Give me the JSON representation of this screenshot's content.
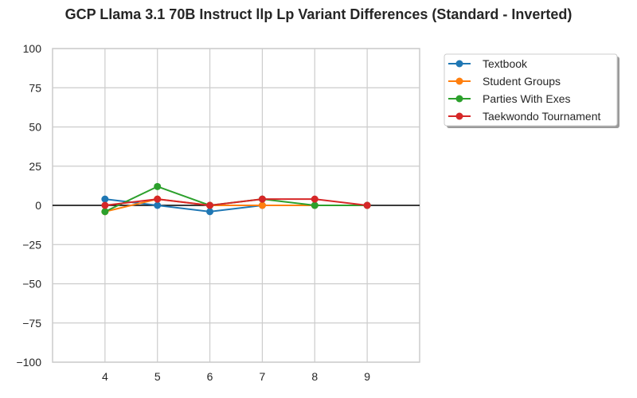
{
  "chart_data": {
    "type": "line",
    "title": "GCP Llama 3.1 70B Instruct llp Lp Variant Differences (Standard - Inverted)",
    "xlabel": "",
    "ylabel": "",
    "x": [
      4,
      5,
      6,
      7,
      8,
      9
    ],
    "x_ticks": [
      "4",
      "5",
      "6",
      "7",
      "8",
      "9"
    ],
    "xlim": [
      3,
      10
    ],
    "ylim": [
      -100,
      100
    ],
    "y_ticks": [
      100,
      75,
      50,
      25,
      0,
      -25,
      -50,
      -75,
      -100
    ],
    "y_tick_labels": [
      "100",
      "75",
      "50",
      "25",
      "0",
      "−25",
      "−50",
      "−75",
      "−100"
    ],
    "grid": true,
    "zero_line": true,
    "legend_position": "outside-top-right",
    "series": [
      {
        "name": "Textbook",
        "color": "#1f77b4",
        "values": [
          4,
          0,
          -4,
          0,
          0,
          0
        ]
      },
      {
        "name": "Student Groups",
        "color": "#ff7f0e",
        "values": [
          -4,
          4,
          0,
          0,
          0,
          0
        ]
      },
      {
        "name": "Parties With Exes",
        "color": "#2ca02c",
        "values": [
          -4,
          12,
          0,
          4,
          0,
          0
        ]
      },
      {
        "name": "Taekwondo Tournament",
        "color": "#d62728",
        "values": [
          0,
          4,
          0,
          4,
          4,
          0
        ]
      }
    ]
  }
}
